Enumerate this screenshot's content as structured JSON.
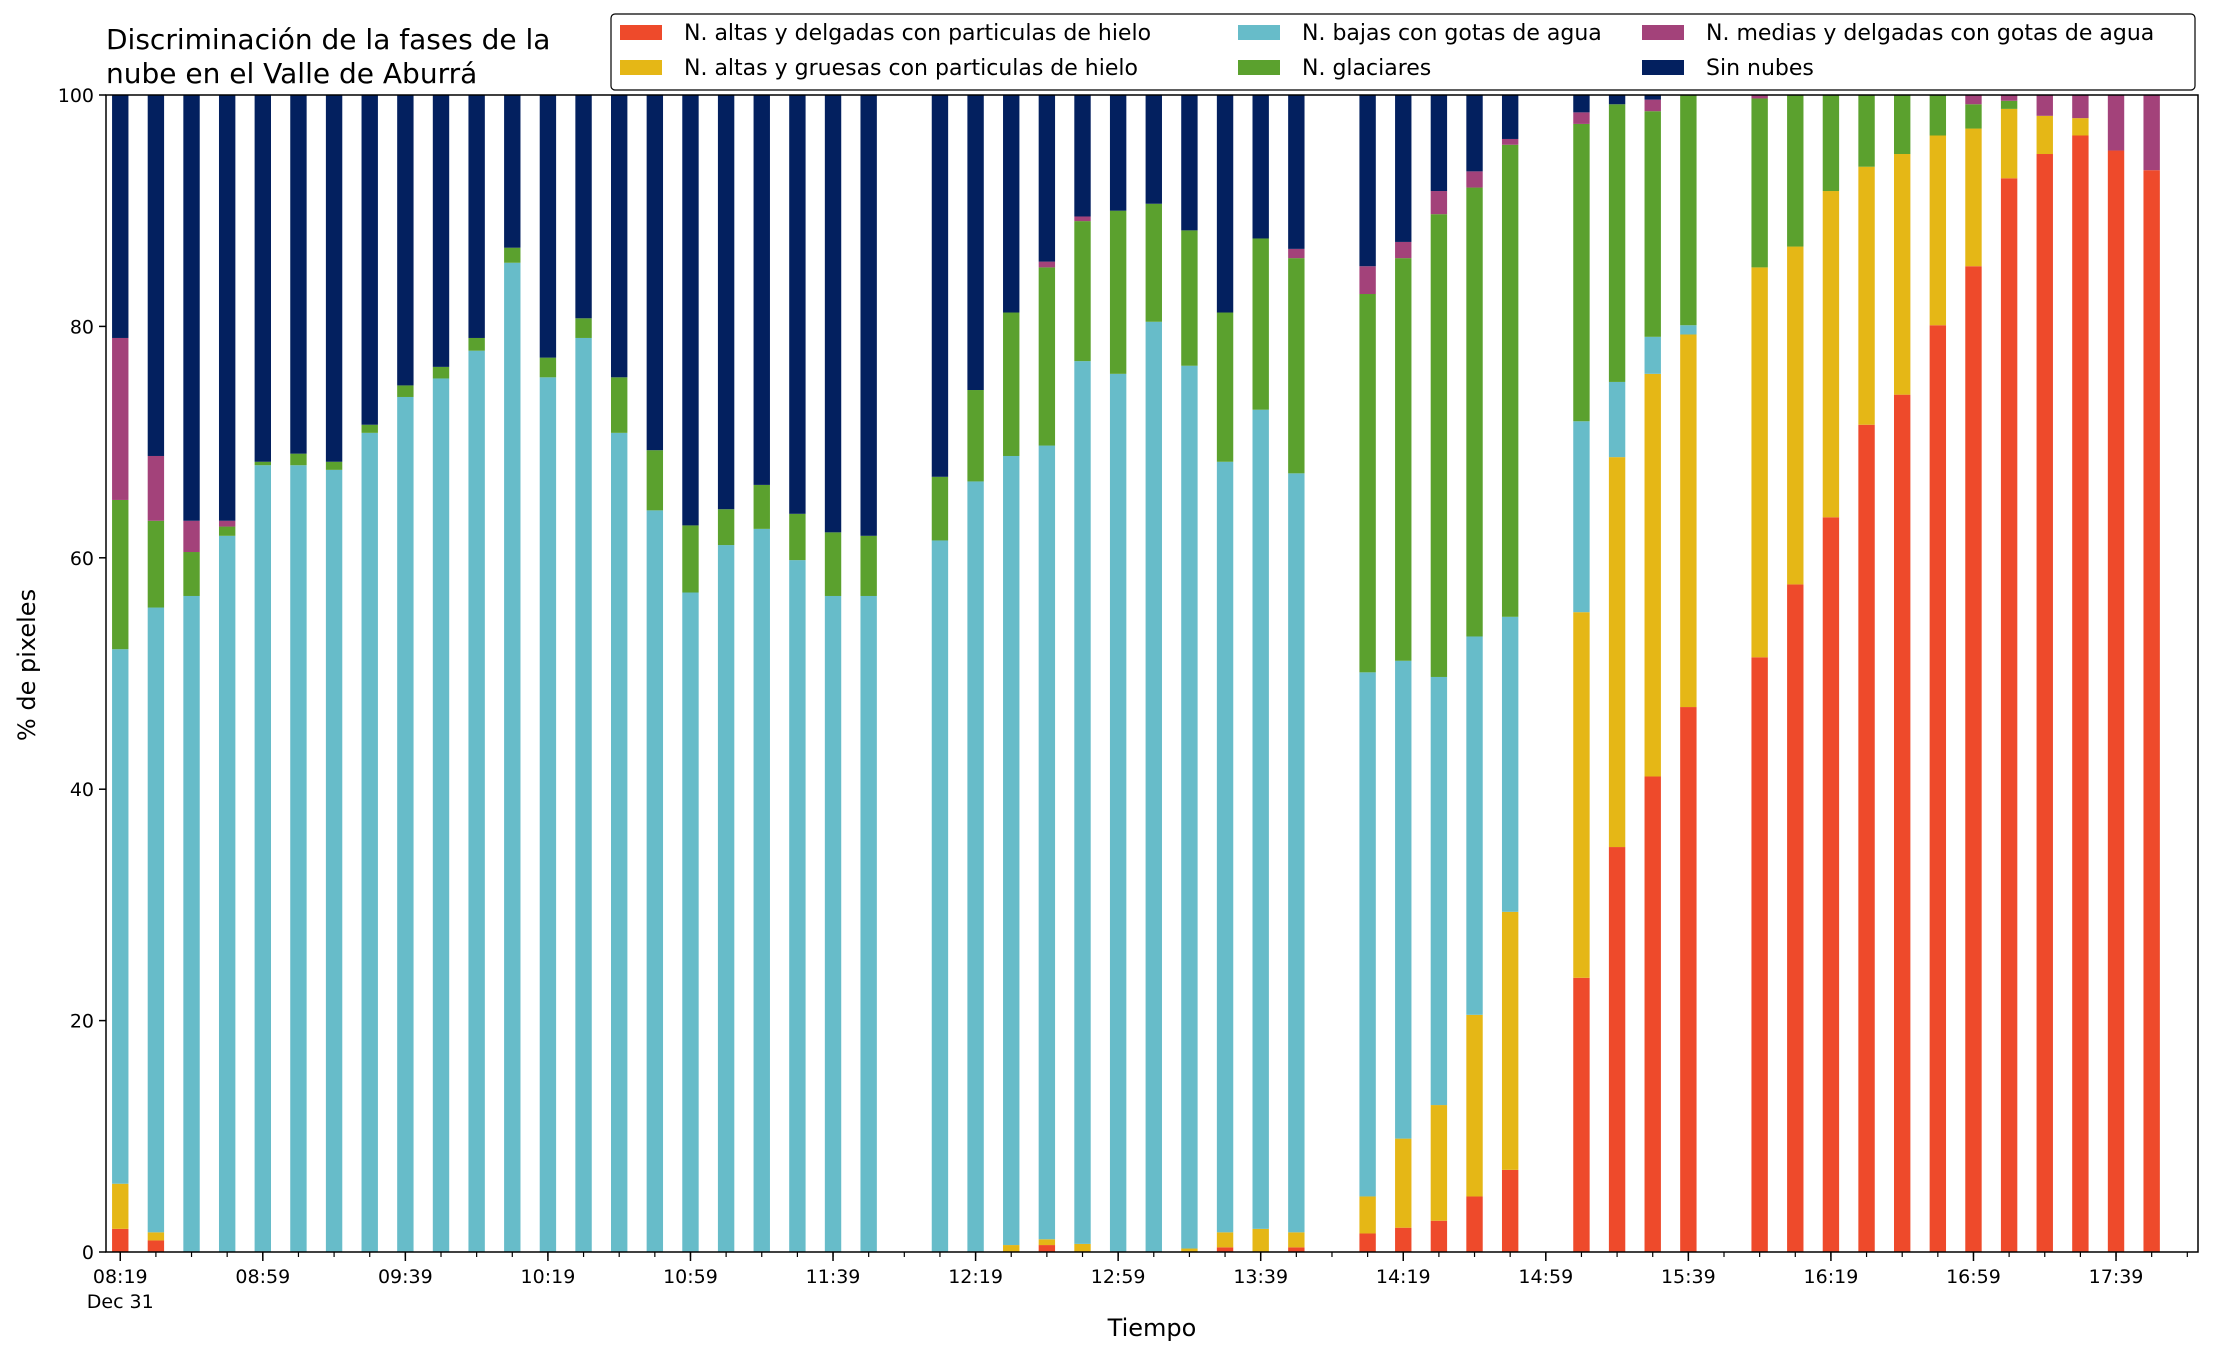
{
  "chart_data": {
    "type": "bar",
    "stacked": true,
    "title": "Discriminación de la fases de la\nnube en el Valle de Aburrá",
    "xlabel": "Tiempo",
    "ylabel": "% de pixeles",
    "ylim": [
      0,
      100
    ],
    "yticks": [
      0,
      20,
      40,
      60,
      80,
      100
    ],
    "x_unit": "minutes of day",
    "x_range": [
      495,
      1082
    ],
    "x_tick_labels": [
      {
        "x": 499,
        "label": "08:19",
        "sublabel": "Dec 31"
      },
      {
        "x": 539,
        "label": "08:59"
      },
      {
        "x": 579,
        "label": "09:39"
      },
      {
        "x": 619,
        "label": "10:19"
      },
      {
        "x": 659,
        "label": "10:59"
      },
      {
        "x": 699,
        "label": "11:39"
      },
      {
        "x": 739,
        "label": "12:19"
      },
      {
        "x": 779,
        "label": "12:59"
      },
      {
        "x": 819,
        "label": "13:39"
      },
      {
        "x": 859,
        "label": "14:19"
      },
      {
        "x": 899,
        "label": "14:59"
      },
      {
        "x": 939,
        "label": "15:39"
      },
      {
        "x": 979,
        "label": "16:19"
      },
      {
        "x": 1019,
        "label": "16:59"
      },
      {
        "x": 1059,
        "label": "17:39"
      }
    ],
    "minor_tick_step": 10,
    "bar_width_minutes": 4.6,
    "legend": {
      "placement": "top-right",
      "columns": 3,
      "order": [
        "altas_delgadas_hielo",
        "altas_gruesas_hielo",
        "bajas_agua",
        "glaciares",
        "medias_agua",
        "sin_nubes"
      ]
    },
    "series": [
      {
        "key": "altas_delgadas_hielo",
        "name": "N. altas y delgadas con particulas de hielo",
        "color": "#ee4a2b"
      },
      {
        "key": "altas_gruesas_hielo",
        "name": "N. altas y gruesas con particulas de hielo",
        "color": "#e5b716"
      },
      {
        "key": "bajas_agua",
        "name": "N. bajas con gotas de agua",
        "color": "#67bcc9"
      },
      {
        "key": "glaciares",
        "name": "N. glaciares",
        "color": "#5ba12e"
      },
      {
        "key": "medias_agua",
        "name": "N. medias y delgadas con gotas de agua",
        "color": "#a3427a"
      },
      {
        "key": "sin_nubes",
        "name": "Sin nubes",
        "color": "#03205f"
      }
    ],
    "stack_order": [
      "altas_delgadas_hielo",
      "altas_gruesas_hielo",
      "bajas_agua",
      "glaciares",
      "medias_agua",
      "sin_nubes"
    ],
    "bars": [
      {
        "time": "08:19",
        "values": [
          2.0,
          3.9,
          46.2,
          12.9,
          14.0,
          21.0
        ]
      },
      {
        "time": "08:29",
        "values": [
          1.0,
          0.7,
          54.0,
          7.5,
          5.6,
          31.2
        ]
      },
      {
        "time": "08:39",
        "values": [
          0.0,
          0.0,
          56.7,
          3.8,
          2.7,
          36.8
        ]
      },
      {
        "time": "08:49",
        "values": [
          0.0,
          0.0,
          61.9,
          0.8,
          0.5,
          36.8
        ]
      },
      {
        "time": "08:59",
        "values": [
          0.0,
          0.0,
          68.0,
          0.3,
          0.0,
          31.7
        ]
      },
      {
        "time": "09:09",
        "values": [
          0.0,
          0.0,
          68.0,
          1.0,
          0.0,
          31.0
        ]
      },
      {
        "time": "09:19",
        "values": [
          0.0,
          0.0,
          67.6,
          0.7,
          0.0,
          31.7
        ]
      },
      {
        "time": "09:29",
        "values": [
          0.0,
          0.0,
          70.8,
          0.7,
          0.0,
          28.5
        ]
      },
      {
        "time": "09:39",
        "values": [
          0.0,
          0.0,
          73.9,
          1.0,
          0.0,
          25.1
        ]
      },
      {
        "time": "09:49",
        "values": [
          0.0,
          0.0,
          75.5,
          1.0,
          0.0,
          23.5
        ]
      },
      {
        "time": "09:59",
        "values": [
          0.0,
          0.0,
          77.9,
          1.1,
          0.0,
          21.0
        ]
      },
      {
        "time": "10:09",
        "values": [
          0.0,
          0.0,
          85.5,
          1.3,
          0.0,
          13.2
        ]
      },
      {
        "time": "10:19",
        "values": [
          0.0,
          0.0,
          75.6,
          1.7,
          0.0,
          22.7
        ]
      },
      {
        "time": "10:29",
        "values": [
          0.0,
          0.0,
          79.0,
          1.7,
          0.0,
          19.3
        ]
      },
      {
        "time": "10:39",
        "values": [
          0.0,
          0.0,
          70.8,
          4.8,
          0.0,
          24.4
        ]
      },
      {
        "time": "10:49",
        "values": [
          0.0,
          0.0,
          64.1,
          5.2,
          0.0,
          30.7
        ]
      },
      {
        "time": "10:59",
        "values": [
          0.0,
          0.0,
          57.0,
          5.8,
          0.0,
          37.2
        ]
      },
      {
        "time": "11:09",
        "values": [
          0.0,
          0.0,
          61.1,
          3.1,
          0.0,
          35.8
        ]
      },
      {
        "time": "11:19",
        "values": [
          0.0,
          0.0,
          62.5,
          3.8,
          0.0,
          33.7
        ]
      },
      {
        "time": "11:29",
        "values": [
          0.0,
          0.0,
          59.8,
          4.0,
          0.0,
          36.2
        ]
      },
      {
        "time": "11:39",
        "values": [
          0.0,
          0.0,
          56.7,
          5.5,
          0.0,
          37.8
        ]
      },
      {
        "time": "11:49",
        "values": [
          0.0,
          0.0,
          56.7,
          5.2,
          0.0,
          38.1
        ]
      },
      {
        "time": "12:09",
        "values": [
          0.0,
          0.0,
          61.5,
          5.5,
          0.0,
          33.0
        ]
      },
      {
        "time": "12:19",
        "values": [
          0.0,
          0.0,
          66.6,
          7.9,
          0.0,
          25.5
        ]
      },
      {
        "time": "12:29",
        "values": [
          0.0,
          0.6,
          68.2,
          12.4,
          0.0,
          18.8
        ]
      },
      {
        "time": "12:39",
        "values": [
          0.6,
          0.5,
          68.6,
          15.4,
          0.5,
          14.4
        ]
      },
      {
        "time": "12:49",
        "values": [
          0.0,
          0.7,
          76.3,
          12.1,
          0.4,
          10.5
        ]
      },
      {
        "time": "12:59",
        "values": [
          0.0,
          0.0,
          75.9,
          14.1,
          0.0,
          10.0
        ]
      },
      {
        "time": "13:09",
        "values": [
          0.0,
          0.0,
          80.4,
          10.2,
          0.0,
          9.4
        ]
      },
      {
        "time": "13:19",
        "values": [
          0.0,
          0.3,
          76.3,
          11.7,
          0.0,
          11.7
        ]
      },
      {
        "time": "13:29",
        "values": [
          0.4,
          1.3,
          66.6,
          12.9,
          0.0,
          18.8
        ]
      },
      {
        "time": "13:39",
        "values": [
          0.0,
          2.0,
          70.8,
          14.8,
          0.0,
          12.4
        ]
      },
      {
        "time": "13:49",
        "values": [
          0.4,
          1.3,
          65.6,
          18.6,
          0.8,
          13.3
        ]
      },
      {
        "time": "14:09",
        "values": [
          1.6,
          3.2,
          45.3,
          32.7,
          2.4,
          14.8
        ]
      },
      {
        "time": "14:19",
        "values": [
          2.1,
          7.7,
          41.3,
          34.8,
          1.4,
          12.7
        ]
      },
      {
        "time": "14:29",
        "values": [
          2.7,
          10.0,
          37.0,
          40.0,
          2.0,
          8.3
        ]
      },
      {
        "time": "14:39",
        "values": [
          4.8,
          15.7,
          32.7,
          38.8,
          1.4,
          6.6
        ]
      },
      {
        "time": "14:49",
        "values": [
          7.1,
          22.3,
          25.5,
          40.8,
          0.5,
          3.8
        ]
      },
      {
        "time": "15:09",
        "values": [
          23.7,
          31.6,
          16.5,
          25.7,
          1.0,
          1.5
        ]
      },
      {
        "time": "15:19",
        "values": [
          35.0,
          33.7,
          6.5,
          24.0,
          0.0,
          0.8
        ]
      },
      {
        "time": "15:29",
        "values": [
          41.1,
          34.8,
          3.2,
          19.5,
          1.0,
          0.4
        ]
      },
      {
        "time": "15:39",
        "values": [
          47.1,
          32.2,
          0.8,
          19.9,
          0.0,
          0.0
        ]
      },
      {
        "time": "15:59",
        "values": [
          51.4,
          33.7,
          0.0,
          14.6,
          0.3,
          0.0
        ]
      },
      {
        "time": "16:09",
        "values": [
          57.7,
          29.2,
          0.0,
          13.1,
          0.0,
          0.0
        ]
      },
      {
        "time": "16:19",
        "values": [
          63.5,
          28.2,
          0.0,
          8.3,
          0.0,
          0.0
        ]
      },
      {
        "time": "16:29",
        "values": [
          71.5,
          22.3,
          0.0,
          6.2,
          0.0,
          0.0
        ]
      },
      {
        "time": "16:39",
        "values": [
          74.1,
          20.8,
          0.0,
          5.1,
          0.0,
          0.0
        ]
      },
      {
        "time": "16:49",
        "values": [
          80.1,
          16.4,
          0.0,
          3.5,
          0.0,
          0.0
        ]
      },
      {
        "time": "16:59",
        "values": [
          85.2,
          11.9,
          0.0,
          2.1,
          0.8,
          0.0
        ]
      },
      {
        "time": "17:09",
        "values": [
          92.8,
          6.0,
          0.0,
          0.7,
          0.5,
          0.0
        ]
      },
      {
        "time": "17:19",
        "values": [
          94.9,
          3.3,
          0.0,
          0.0,
          1.8,
          0.0
        ]
      },
      {
        "time": "17:29",
        "values": [
          96.5,
          1.5,
          0.0,
          0.0,
          2.0,
          0.0
        ]
      },
      {
        "time": "17:39",
        "values": [
          95.2,
          0.0,
          0.0,
          0.0,
          4.8,
          0.0
        ]
      },
      {
        "time": "17:49",
        "values": [
          93.5,
          0.0,
          0.0,
          0.0,
          6.5,
          0.0
        ]
      }
    ]
  }
}
